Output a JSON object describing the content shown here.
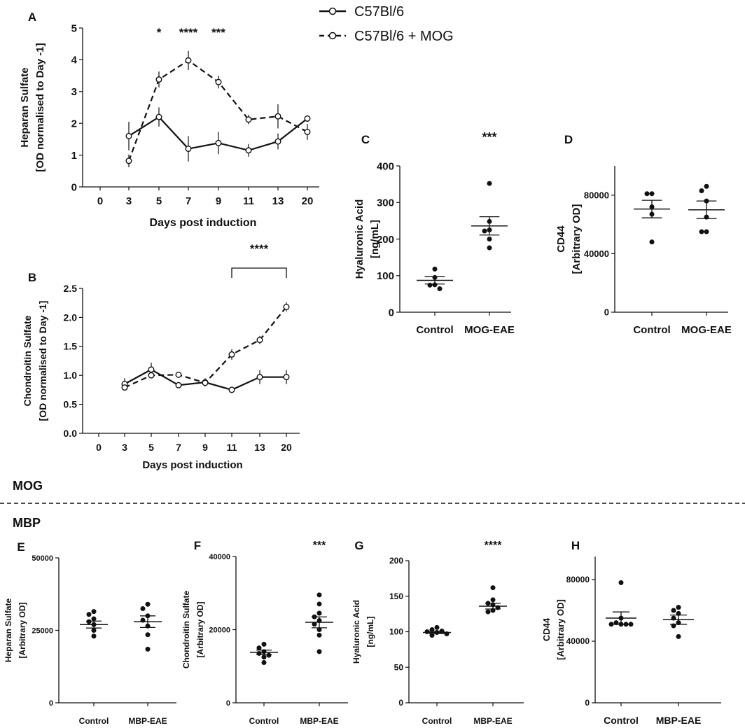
{
  "legend": {
    "items": [
      {
        "label": "C57Bl/6",
        "style": "solid"
      },
      {
        "label": "C57Bl/6 + MOG",
        "style": "dashed"
      }
    ]
  },
  "section_labels": {
    "mog": "MOG",
    "mbp": "MBP"
  },
  "chart_data": [
    {
      "id": "A",
      "type": "line",
      "panel_label": "A",
      "categories": [
        "0",
        "3",
        "5",
        "7",
        "9",
        "11",
        "13",
        "20"
      ],
      "xlabel": "Days post induction",
      "ylabel_lines": [
        "Heparan Sulfate",
        "[OD normalised to Day -1]"
      ],
      "ylim": [
        0,
        5
      ],
      "yticks": [
        "0",
        "1",
        "2",
        "3",
        "4",
        "5"
      ],
      "series": [
        {
          "name": "C57Bl/6",
          "style": "solid",
          "values": [
            null,
            1.6,
            2.2,
            1.2,
            1.38,
            1.15,
            1.43,
            2.15
          ],
          "errors": [
            null,
            0.45,
            0.3,
            0.4,
            0.35,
            0.2,
            0.25,
            0.1
          ]
        },
        {
          "name": "C57Bl/6 + MOG",
          "style": "dashed",
          "values": [
            null,
            0.82,
            3.38,
            3.98,
            3.3,
            2.12,
            2.22,
            1.73
          ],
          "errors": [
            null,
            0.2,
            0.25,
            0.3,
            0.2,
            0.15,
            0.38,
            0.25
          ]
        }
      ],
      "annotations": [
        {
          "text": "*",
          "at": "5"
        },
        {
          "text": "****",
          "at": "7"
        },
        {
          "text": "***",
          "at": "9"
        }
      ]
    },
    {
      "id": "B",
      "type": "line",
      "panel_label": "B",
      "categories": [
        "0",
        "3",
        "5",
        "7",
        "9",
        "11",
        "13",
        "20"
      ],
      "xlabel": "Days post induction",
      "ylabel_lines": [
        "Chondroitin Sulfate",
        "[OD normalised to Day -1]"
      ],
      "ylim": [
        0,
        2.5
      ],
      "yticks": [
        "0.0",
        "0.5",
        "1.0",
        "1.5",
        "2.0",
        "2.5"
      ],
      "series": [
        {
          "name": "C57Bl/6",
          "style": "solid",
          "values": [
            null,
            0.85,
            1.1,
            0.83,
            0.88,
            0.75,
            0.97,
            0.97
          ],
          "errors": [
            null,
            0.1,
            0.12,
            0.05,
            0.07,
            0.03,
            0.12,
            0.12
          ]
        },
        {
          "name": "C57Bl/6 + MOG",
          "style": "dashed",
          "values": [
            null,
            0.79,
            1.0,
            1.01,
            0.87,
            1.36,
            1.61,
            2.18
          ],
          "errors": [
            null,
            0.05,
            0.05,
            0.04,
            0.05,
            0.09,
            0.07,
            0.08
          ]
        }
      ],
      "bracket": {
        "from": "11",
        "to": "20",
        "text": "****"
      }
    },
    {
      "id": "C",
      "type": "scatter",
      "panel_label": "C",
      "categories": [
        "Control",
        "MOG-EAE"
      ],
      "ylabel_lines": [
        "Hyaluronic Acid",
        "[ng/mL]"
      ],
      "ylim": [
        0,
        400
      ],
      "yticks": [
        "0",
        "100",
        "200",
        "300",
        "400"
      ],
      "groups": [
        {
          "name": "Control",
          "points": [
            95,
            118,
            74,
            64,
            75
          ],
          "mean": 87,
          "sem": 10
        },
        {
          "name": "MOG-EAE",
          "points": [
            352,
            248,
            225,
            222,
            200,
            176
          ],
          "mean": 236,
          "sem": 25
        }
      ],
      "significance": "***"
    },
    {
      "id": "D",
      "type": "scatter",
      "panel_label": "D",
      "categories": [
        "Control",
        "MOG-EAE"
      ],
      "ylabel_lines": [
        "CD44",
        "[Arbitrary OD]"
      ],
      "ylim": [
        0,
        100000
      ],
      "yticks": [
        "0",
        "40000",
        "80000"
      ],
      "groups": [
        {
          "name": "Control",
          "points": [
            81000,
            81000,
            72000,
            67000,
            48000
          ],
          "mean": 70500,
          "sem": 6000
        },
        {
          "name": "MOG-EAE",
          "points": [
            86000,
            83000,
            76000,
            65000,
            55000,
            55000
          ],
          "mean": 70000,
          "sem": 6000
        }
      ]
    },
    {
      "id": "E",
      "type": "scatter",
      "panel_label": "E",
      "categories": [
        "Control",
        "MBP-EAE"
      ],
      "ylabel_lines": [
        "Heparan Sulfate",
        "[Arbitrary OD]"
      ],
      "ylim": [
        0,
        50000
      ],
      "yticks": [
        "0",
        "25000",
        "50000"
      ],
      "groups": [
        {
          "name": "Control",
          "points": [
            31500,
            30500,
            29000,
            28000,
            27000,
            25000,
            23000
          ],
          "mean": 27000,
          "sem": 1200
        },
        {
          "name": "MBP-EAE",
          "points": [
            34000,
            32500,
            30000,
            28500,
            26500,
            23500,
            18500
          ],
          "mean": 28000,
          "sem": 2000
        }
      ]
    },
    {
      "id": "F",
      "type": "scatter",
      "panel_label": "F",
      "categories": [
        "Control",
        "MBP-EAE"
      ],
      "ylabel_lines": [
        "Chondroitin Sulfate",
        "[Arbitrary OD]"
      ],
      "ylim": [
        0,
        40000
      ],
      "yticks": [
        "0",
        "20000",
        "40000"
      ],
      "groups": [
        {
          "name": "Control",
          "points": [
            16000,
            15000,
            14000,
            13500,
            13000,
            12500,
            11000
          ],
          "mean": 13800,
          "sem": 600
        },
        {
          "name": "MBP-EAE",
          "points": [
            29500,
            27000,
            24500,
            23500,
            22500,
            21500,
            20000,
            18500,
            14000
          ],
          "mean": 22000,
          "sem": 1500
        }
      ],
      "significance": "***"
    },
    {
      "id": "G",
      "type": "scatter",
      "panel_label": "G",
      "categories": [
        "Control",
        "MBP-EAE"
      ],
      "ylabel_lines": [
        "Hyaluronic Acid",
        "[ng/mL]"
      ],
      "ylim": [
        0,
        200
      ],
      "yticks": [
        "0",
        "50",
        "100",
        "150",
        "200"
      ],
      "groups": [
        {
          "name": "Control",
          "points": [
            106,
            103,
            101,
            100,
            99,
            97,
            95
          ],
          "mean": 99,
          "sem": 1.5
        },
        {
          "name": "MBP-EAE",
          "points": [
            162,
            145,
            140,
            138,
            134,
            130,
            128
          ],
          "mean": 136,
          "sem": 4
        }
      ],
      "significance": "****"
    },
    {
      "id": "H",
      "type": "scatter",
      "panel_label": "H",
      "categories": [
        "Control",
        "MBP-EAE"
      ],
      "ylabel_lines": [
        "CD44",
        "[Arbitrary OD]"
      ],
      "ylim": [
        0,
        95000
      ],
      "yticks": [
        "0",
        "40000",
        "80000"
      ],
      "groups": [
        {
          "name": "Control",
          "points": [
            78000,
            55000,
            52000,
            51000,
            51000,
            51000,
            51000
          ],
          "mean": 55000,
          "sem": 4000
        },
        {
          "name": "MBP-EAE",
          "points": [
            62000,
            60000,
            58000,
            55000,
            52000,
            50000,
            43000
          ],
          "mean": 54000,
          "sem": 3000
        }
      ]
    }
  ]
}
